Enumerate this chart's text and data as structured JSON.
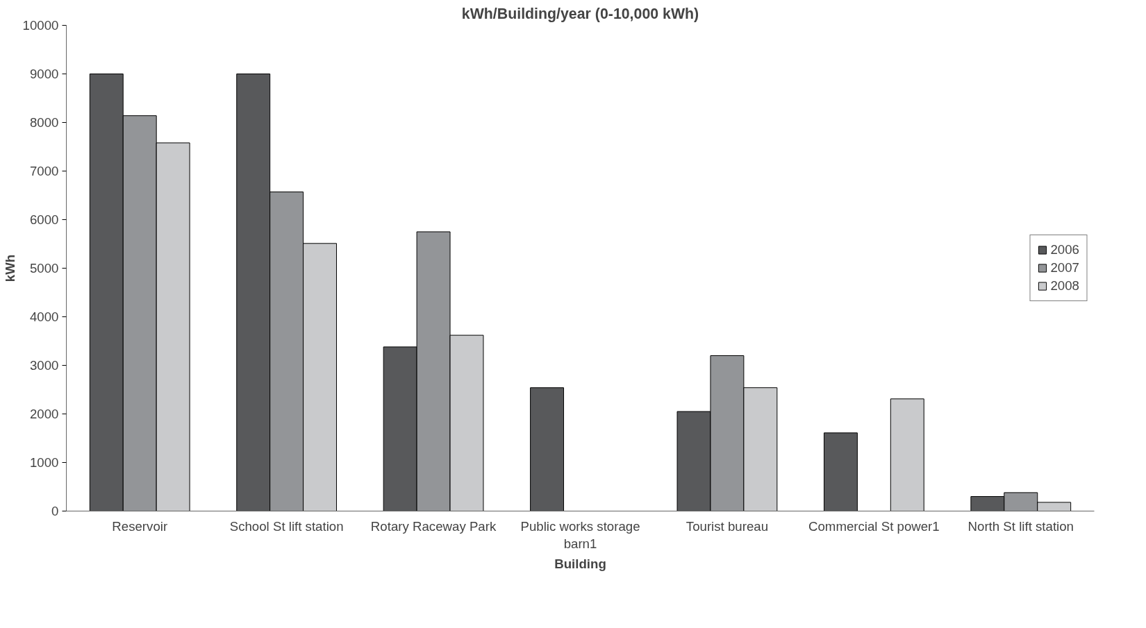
{
  "chart_data": {
    "type": "bar",
    "title": "kWh/Building/year (0-10,000 kWh)",
    "xlabel": "Building",
    "ylabel": "kWh",
    "categories": [
      "Reservoir",
      "School St lift station",
      "Rotary Raceway Park",
      "Public works storage barn1",
      "Tourist bureau",
      "Commercial St power1",
      "North St lift station"
    ],
    "series": [
      {
        "name": "2006",
        "color": "#58595b",
        "values": [
          9000,
          9000,
          3380,
          2540,
          2050,
          1610,
          300
        ]
      },
      {
        "name": "2007",
        "color": "#939598",
        "values": [
          8140,
          6570,
          5750,
          null,
          3200,
          null,
          380
        ]
      },
      {
        "name": "2008",
        "color": "#c9cacc",
        "values": [
          7580,
          5510,
          3620,
          null,
          2540,
          2310,
          180
        ]
      }
    ],
    "ylim": [
      0,
      10000
    ],
    "yticks": [
      0,
      1000,
      2000,
      3000,
      4000,
      5000,
      6000,
      7000,
      8000,
      9000,
      10000
    ],
    "grid": false,
    "legend": "right"
  }
}
